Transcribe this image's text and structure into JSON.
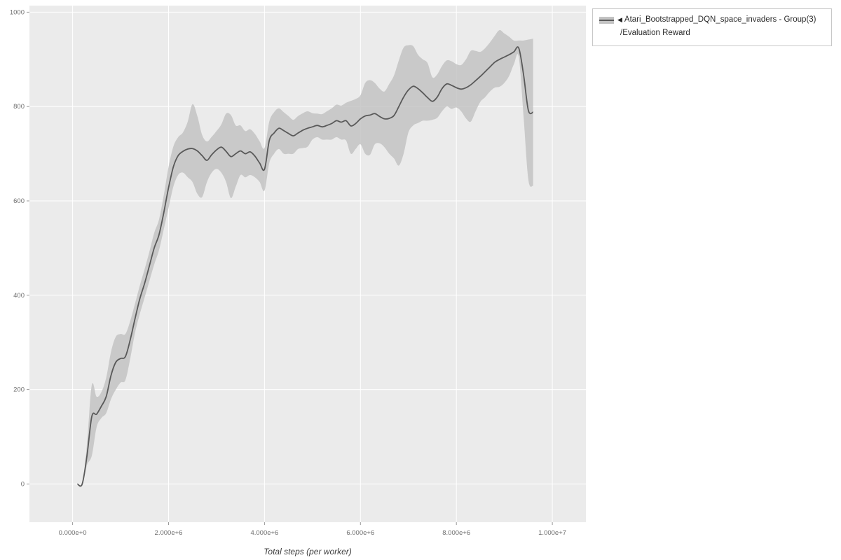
{
  "figure": {
    "xlabel": "Total steps (per worker)"
  },
  "legend": {
    "collapse_icon": "◀",
    "series_label": "Atari_Bootstrapped_DQN_space_invaders - Group(3)",
    "metric_label": "/Evaluation Reward"
  },
  "colors": {
    "plot_bg": "#ebebeb",
    "grid": "#ffffff",
    "band": "#c3c3c3",
    "line": "#595959",
    "tick_text": "#6e6e6e",
    "legend_border": "#c8c8c8"
  },
  "chart_data": {
    "type": "line",
    "title": "",
    "xlabel": "Total steps (per worker)",
    "ylabel": "",
    "x_unit": "millions of steps",
    "xlim": [
      -0.9,
      10.7
    ],
    "ylim": [
      -81,
      1014
    ],
    "grid": true,
    "legend_position": "top-right-outside",
    "band_meaning": "shaded min-max/std band around group mean",
    "xticks": [
      {
        "v": 0,
        "label": "0.000e+0"
      },
      {
        "v": 2,
        "label": "2.000e+6"
      },
      {
        "v": 4,
        "label": "4.000e+6"
      },
      {
        "v": 6,
        "label": "6.000e+6"
      },
      {
        "v": 8,
        "label": "8.000e+6"
      },
      {
        "v": 10,
        "label": "1.000e+7"
      }
    ],
    "yticks": [
      {
        "v": 0,
        "label": "0"
      },
      {
        "v": 200,
        "label": "200"
      },
      {
        "v": 400,
        "label": "400"
      },
      {
        "v": 600,
        "label": "600"
      },
      {
        "v": 800,
        "label": "800"
      },
      {
        "v": 1000,
        "label": "1000"
      }
    ],
    "series": [
      {
        "name": "Atari_Bootstrapped_DQN_space_invaders - Group(3)/Evaluation Reward",
        "x": [
          0.1,
          0.2,
          0.3,
          0.4,
          0.5,
          0.6,
          0.7,
          0.8,
          0.9,
          1.0,
          1.1,
          1.2,
          1.3,
          1.4,
          1.5,
          1.6,
          1.7,
          1.8,
          1.9,
          2.0,
          2.1,
          2.2,
          2.3,
          2.4,
          2.5,
          2.6,
          2.7,
          2.8,
          2.9,
          3.0,
          3.1,
          3.2,
          3.3,
          3.4,
          3.5,
          3.6,
          3.7,
          3.8,
          3.9,
          4.0,
          4.1,
          4.2,
          4.3,
          4.4,
          4.5,
          4.6,
          4.7,
          4.8,
          4.9,
          5.0,
          5.1,
          5.2,
          5.3,
          5.4,
          5.5,
          5.6,
          5.7,
          5.8,
          5.9,
          6.0,
          6.1,
          6.2,
          6.3,
          6.4,
          6.5,
          6.6,
          6.7,
          6.8,
          6.9,
          7.0,
          7.1,
          7.2,
          7.3,
          7.4,
          7.5,
          7.6,
          7.7,
          7.8,
          7.9,
          8.0,
          8.1,
          8.2,
          8.3,
          8.4,
          8.5,
          8.6,
          8.7,
          8.8,
          8.9,
          9.0,
          9.1,
          9.2,
          9.3,
          9.4,
          9.5,
          9.6
        ],
        "mean": [
          0,
          0,
          60,
          143,
          148,
          165,
          185,
          230,
          258,
          266,
          270,
          305,
          350,
          392,
          425,
          462,
          500,
          528,
          575,
          628,
          672,
          696,
          705,
          710,
          711,
          706,
          696,
          686,
          698,
          708,
          714,
          705,
          694,
          700,
          706,
          700,
          704,
          695,
          680,
          667,
          728,
          744,
          754,
          749,
          743,
          738,
          744,
          750,
          754,
          757,
          760,
          757,
          760,
          764,
          770,
          767,
          770,
          759,
          764,
          774,
          780,
          782,
          785,
          779,
          774,
          775,
          781,
          800,
          820,
          835,
          843,
          838,
          829,
          819,
          811,
          820,
          838,
          848,
          845,
          840,
          837,
          840,
          846,
          855,
          864,
          874,
          884,
          894,
          900,
          905,
          910,
          916,
          924,
          868,
          792,
          788
        ],
        "lower": [
          0,
          0,
          40,
          60,
          120,
          140,
          150,
          180,
          200,
          215,
          220,
          265,
          320,
          360,
          395,
          430,
          465,
          495,
          540,
          585,
          630,
          655,
          660,
          650,
          640,
          615,
          608,
          640,
          660,
          668,
          660,
          640,
          606,
          630,
          655,
          650,
          655,
          650,
          640,
          622,
          680,
          700,
          710,
          700,
          700,
          700,
          710,
          712,
          715,
          730,
          735,
          730,
          730,
          730,
          735,
          730,
          728,
          700,
          710,
          720,
          700,
          698,
          720,
          722,
          714,
          700,
          690,
          675,
          700,
          745,
          760,
          765,
          770,
          770,
          772,
          776,
          790,
          800,
          795,
          798,
          790,
          775,
          768,
          790,
          810,
          820,
          832,
          840,
          842,
          850,
          865,
          890,
          905,
          780,
          645,
          632
        ],
        "upper": [
          0,
          0,
          85,
          210,
          185,
          195,
          225,
          280,
          312,
          318,
          318,
          345,
          382,
          420,
          455,
          492,
          532,
          560,
          612,
          672,
          715,
          735,
          745,
          768,
          805,
          780,
          740,
          726,
          736,
          748,
          762,
          785,
          782,
          760,
          760,
          748,
          752,
          742,
          726,
          712,
          768,
          788,
          796,
          788,
          780,
          772,
          780,
          786,
          790,
          786,
          785,
          784,
          790,
          796,
          804,
          802,
          808,
          812,
          816,
          824,
          850,
          856,
          850,
          838,
          832,
          848,
          866,
          898,
          925,
          930,
          928,
          910,
          900,
          892,
          862,
          868,
          886,
          898,
          896,
          890,
          888,
          900,
          918,
          918,
          916,
          924,
          936,
          950,
          962,
          955,
          948,
          940,
          940,
          940,
          942,
          944
        ]
      }
    ]
  }
}
